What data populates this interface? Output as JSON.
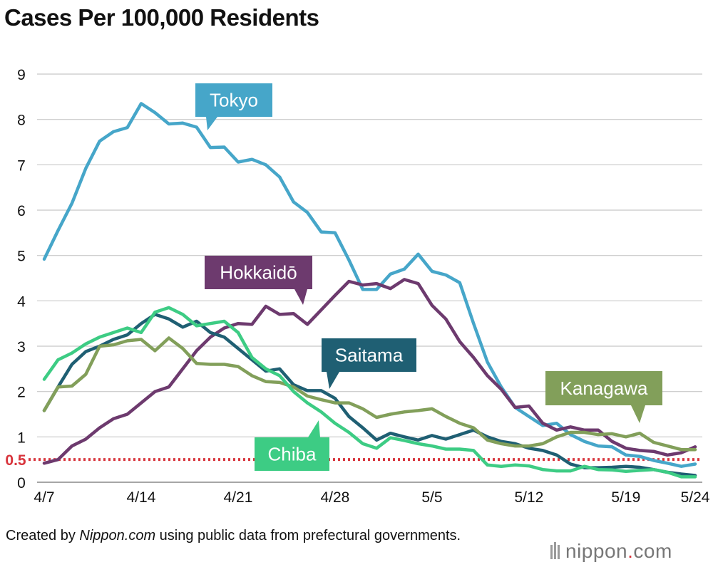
{
  "title": "Cases Per 100,000 Residents",
  "credit": {
    "prefix": "Created by ",
    "source": "Nippon.com",
    "suffix": " using public data from prefectural governments."
  },
  "logo": {
    "name": "nippon",
    "dot": ".",
    "tld": "com"
  },
  "chart_data": {
    "type": "line",
    "title": "Cases Per 100,000 Residents",
    "xlabel": "",
    "ylabel": "",
    "ylim": [
      0,
      9
    ],
    "yticks": [
      0,
      1,
      2,
      3,
      4,
      5,
      6,
      7,
      8,
      9
    ],
    "grid": true,
    "x_day_range": [
      0,
      47
    ],
    "xticks": [
      {
        "day": 0,
        "label": "4/7"
      },
      {
        "day": 7,
        "label": "4/14"
      },
      {
        "day": 14,
        "label": "4/21"
      },
      {
        "day": 21,
        "label": "4/28"
      },
      {
        "day": 28,
        "label": "5/5"
      },
      {
        "day": 35,
        "label": "5/12"
      },
      {
        "day": 42,
        "label": "5/19"
      },
      {
        "day": 47,
        "label": "5/24"
      }
    ],
    "reference_line": {
      "value": 0.5,
      "label": "0.5",
      "color": "#d8333b",
      "style": "dotted"
    },
    "series": [
      {
        "name": "Tokyo",
        "color": "#46a6c9",
        "values": [
          4.92,
          5.55,
          6.15,
          6.92,
          7.52,
          7.73,
          7.82,
          8.35,
          8.15,
          7.9,
          7.92,
          7.83,
          7.38,
          7.39,
          7.06,
          7.12,
          7.0,
          6.73,
          6.18,
          5.95,
          5.52,
          5.5,
          4.9,
          4.25,
          4.25,
          4.59,
          4.7,
          5.03,
          4.65,
          4.57,
          4.4,
          3.5,
          2.65,
          2.1,
          1.65,
          1.45,
          1.25,
          1.3,
          1.05,
          0.9,
          0.8,
          0.78,
          0.6,
          0.57,
          0.48,
          0.42,
          0.35,
          0.4
        ]
      },
      {
        "name": "Hokkaidō",
        "color": "#6d3a6e",
        "values": [
          0.42,
          0.5,
          0.8,
          0.95,
          1.2,
          1.4,
          1.5,
          1.75,
          2.0,
          2.1,
          2.5,
          2.9,
          3.2,
          3.4,
          3.5,
          3.48,
          3.88,
          3.7,
          3.72,
          3.48,
          3.8,
          4.12,
          4.43,
          4.35,
          4.38,
          4.27,
          4.47,
          4.38,
          3.9,
          3.6,
          3.1,
          2.75,
          2.35,
          2.05,
          1.65,
          1.68,
          1.3,
          1.15,
          1.22,
          1.15,
          1.15,
          0.9,
          0.75,
          0.7,
          0.68,
          0.6,
          0.65,
          0.78
        ]
      },
      {
        "name": "Saitama",
        "color": "#1f5f73",
        "values": [
          1.58,
          2.1,
          2.6,
          2.88,
          3.0,
          3.15,
          3.25,
          3.5,
          3.7,
          3.6,
          3.42,
          3.55,
          3.3,
          3.2,
          2.95,
          2.7,
          2.45,
          2.5,
          2.15,
          2.02,
          2.02,
          1.85,
          1.45,
          1.2,
          0.93,
          1.08,
          1.0,
          0.93,
          1.03,
          0.95,
          1.05,
          1.15,
          1.0,
          0.9,
          0.85,
          0.75,
          0.7,
          0.6,
          0.4,
          0.32,
          0.32,
          0.33,
          0.35,
          0.33,
          0.28,
          0.22,
          0.18,
          0.15
        ]
      },
      {
        "name": "Kanagawa",
        "color": "#829f5a",
        "values": [
          1.58,
          2.1,
          2.12,
          2.38,
          3.0,
          3.03,
          3.12,
          3.15,
          2.9,
          3.18,
          2.95,
          2.62,
          2.6,
          2.6,
          2.55,
          2.35,
          2.22,
          2.2,
          2.1,
          1.9,
          1.82,
          1.75,
          1.75,
          1.62,
          1.43,
          1.5,
          1.55,
          1.58,
          1.62,
          1.45,
          1.3,
          1.2,
          0.93,
          0.85,
          0.8,
          0.8,
          0.85,
          1.0,
          1.1,
          1.1,
          1.05,
          1.07,
          1.0,
          1.08,
          0.88,
          0.8,
          0.72,
          0.72
        ]
      },
      {
        "name": "Chiba",
        "color": "#3dcc84",
        "values": [
          2.27,
          2.7,
          2.85,
          3.05,
          3.2,
          3.3,
          3.4,
          3.3,
          3.75,
          3.85,
          3.7,
          3.45,
          3.5,
          3.55,
          3.3,
          2.75,
          2.5,
          2.35,
          2.0,
          1.75,
          1.55,
          1.3,
          1.1,
          0.85,
          0.75,
          0.98,
          0.92,
          0.85,
          0.8,
          0.73,
          0.73,
          0.7,
          0.38,
          0.35,
          0.38,
          0.36,
          0.28,
          0.25,
          0.25,
          0.35,
          0.28,
          0.27,
          0.24,
          0.26,
          0.28,
          0.22,
          0.12,
          0.12
        ]
      }
    ],
    "callouts": [
      {
        "series": "Tokyo",
        "label": "Tokyo",
        "color": "#46a6c9"
      },
      {
        "series": "Hokkaidō",
        "label": "Hokkaidō",
        "color": "#6d3a6e"
      },
      {
        "series": "Saitama",
        "label": "Saitama",
        "color": "#1f5f73"
      },
      {
        "series": "Kanagawa",
        "label": "Kanagawa",
        "color": "#829f5a"
      },
      {
        "series": "Chiba",
        "label": "Chiba",
        "color": "#3dcc84"
      }
    ]
  }
}
